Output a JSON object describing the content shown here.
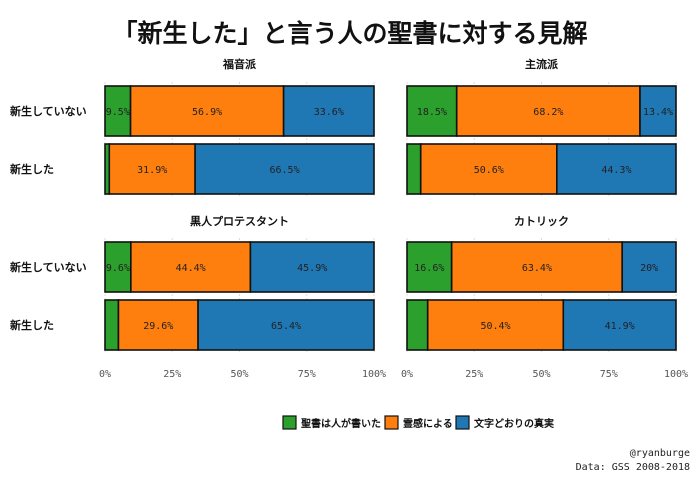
{
  "title": "「新生した」と言う人の聖書に対する見解",
  "credit": {
    "author": "@ryanburge",
    "source": "Data: GSS 2008-2018"
  },
  "colors": {
    "series": [
      "#2ca02c",
      "#ff7f0e",
      "#1f77b4"
    ],
    "grid": "#dddddd"
  },
  "chart_data": {
    "type": "bar",
    "orientation": "horizontal",
    "stacked": true,
    "xlim": [
      0,
      1
    ],
    "x_ticks": [
      "0%",
      "25%",
      "50%",
      "75%",
      "100%"
    ],
    "categories": [
      "新生していない",
      "新生した"
    ],
    "legend_position": "bottom",
    "series_names": [
      "聖書は人が書いた",
      "霊感による",
      "文字どおりの真実"
    ],
    "facets": [
      {
        "title": "福音派",
        "rows": [
          {
            "label": "新生していない",
            "values": [
              9.5,
              56.9,
              33.6
            ],
            "labels": [
              "9.5%",
              "56.9%",
              "33.6%"
            ]
          },
          {
            "label": "新生した",
            "values": [
              1.6,
              31.9,
              66.5
            ],
            "labels": [
              "",
              "31.9%",
              "66.5%"
            ]
          }
        ]
      },
      {
        "title": "主流派",
        "rows": [
          {
            "label": "新生していない",
            "values": [
              18.5,
              68.2,
              13.4
            ],
            "labels": [
              "18.5%",
              "68.2%",
              "13.4%"
            ]
          },
          {
            "label": "新生した",
            "values": [
              5.1,
              50.6,
              44.3
            ],
            "labels": [
              "",
              "50.6%",
              "44.3%"
            ]
          }
        ]
      },
      {
        "title": "黒人プロテスタント",
        "rows": [
          {
            "label": "新生していない",
            "values": [
              9.6,
              44.4,
              45.9
            ],
            "labels": [
              "9.6%",
              "44.4%",
              "45.9%"
            ]
          },
          {
            "label": "新生した",
            "values": [
              5.0,
              29.6,
              65.4
            ],
            "labels": [
              "",
              "29.6%",
              "65.4%"
            ]
          }
        ]
      },
      {
        "title": "カトリック",
        "rows": [
          {
            "label": "新生していない",
            "values": [
              16.6,
              63.4,
              20.0
            ],
            "labels": [
              "16.6%",
              "63.4%",
              "20%"
            ]
          },
          {
            "label": "新生した",
            "values": [
              7.7,
              50.4,
              41.9
            ],
            "labels": [
              "",
              "50.4%",
              "41.9%"
            ]
          }
        ]
      }
    ]
  }
}
